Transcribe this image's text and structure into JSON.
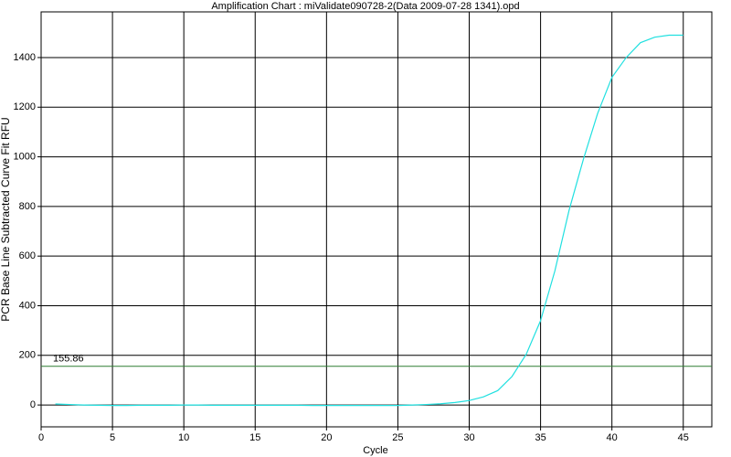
{
  "chart_data": {
    "type": "line",
    "title": "Amplification Chart : miValidate090728-2(Data 2009-07-28 1341).opd",
    "xlabel": "Cycle",
    "ylabel": "PCR Base Line Subtracted Curve Fit RFU",
    "x": [
      1,
      2,
      3,
      4,
      5,
      6,
      7,
      8,
      9,
      10,
      11,
      12,
      13,
      14,
      15,
      16,
      17,
      18,
      19,
      20,
      21,
      22,
      23,
      24,
      25,
      26,
      27,
      28,
      29,
      30,
      31,
      32,
      33,
      34,
      35,
      36,
      37,
      38,
      39,
      40,
      41,
      42,
      43,
      44,
      45
    ],
    "series": [
      {
        "name": null,
        "color": "#20e0e0",
        "values": [
          4,
          2,
          0,
          -1,
          -2,
          -2,
          -1,
          -1,
          -1,
          0,
          0,
          -1,
          -1,
          -1,
          -1,
          -1,
          -1,
          -1,
          -2,
          -2,
          -2,
          -2,
          -2,
          -2,
          -2,
          0,
          2,
          5,
          10,
          18,
          33,
          58,
          115,
          205,
          340,
          540,
          785,
          990,
          1175,
          1320,
          1400,
          1460,
          1482,
          1490,
          1490
        ]
      }
    ],
    "xlim": [
      0,
      47
    ],
    "ylim": [
      -88,
      1584
    ],
    "xticks": [
      0,
      5,
      10,
      15,
      20,
      25,
      30,
      35,
      40,
      45
    ],
    "yticks": [
      0,
      200,
      400,
      600,
      800,
      1000,
      1200,
      1400
    ],
    "grid": true,
    "threshold": 155.86,
    "threshold_color": "#2e7d32"
  }
}
